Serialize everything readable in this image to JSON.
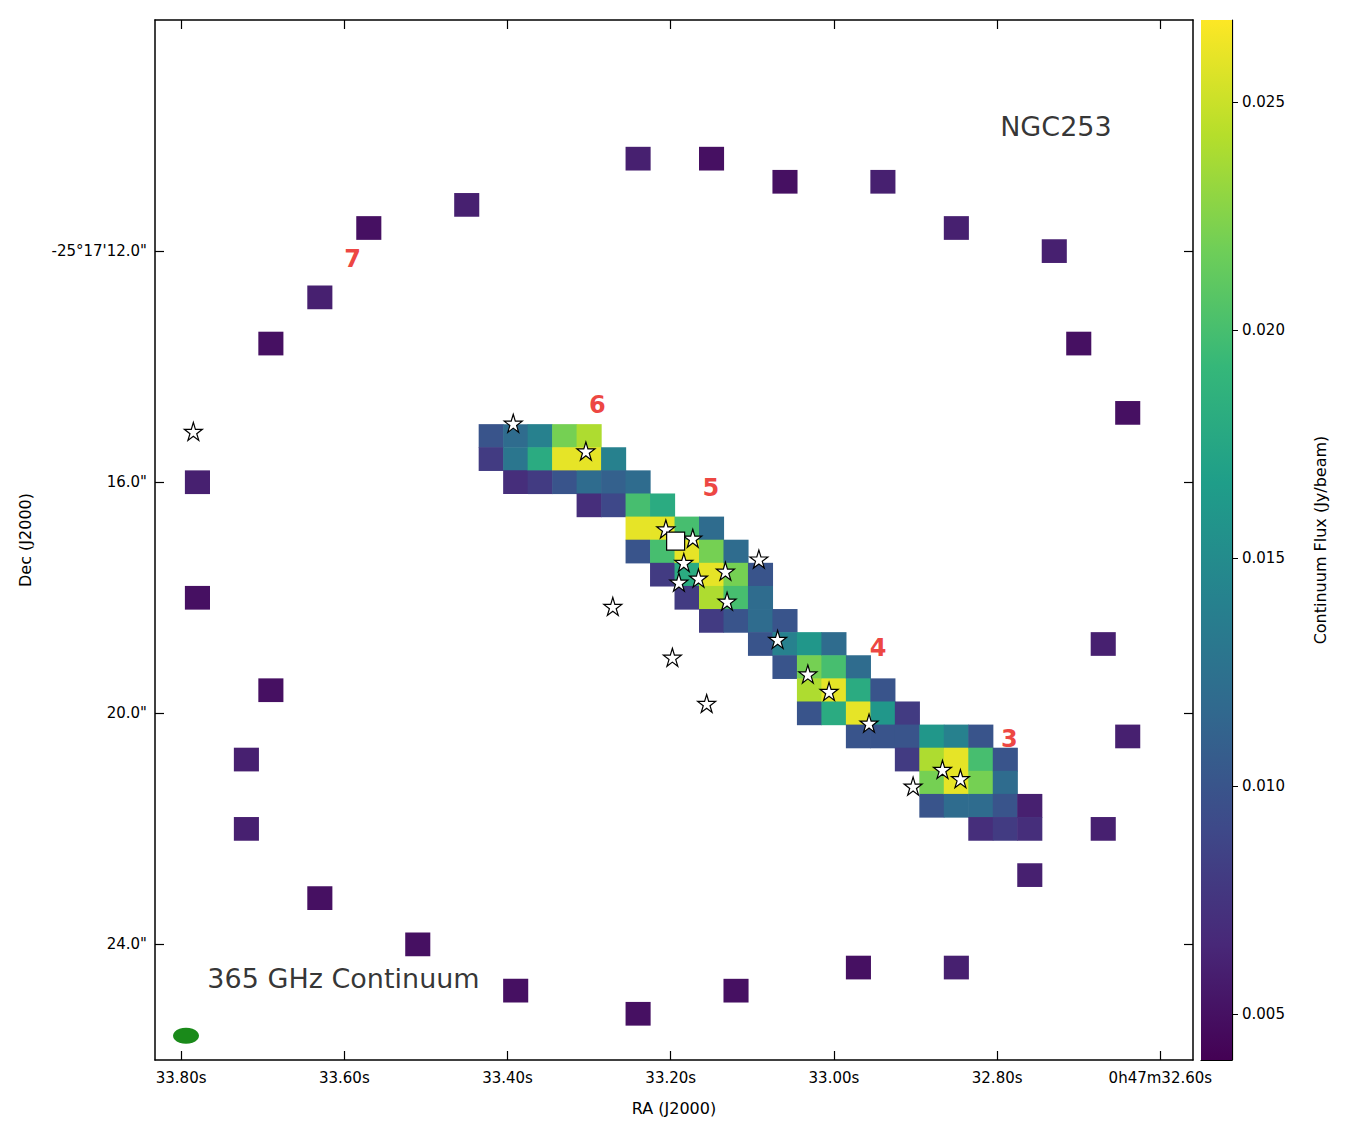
{
  "chart_data": {
    "type": "heatmap",
    "xlabel": "RA (J2000)",
    "ylabel": "Dec (J2000)",
    "xlim": [
      33.832,
      32.56
    ],
    "xticks": [
      {
        "value": 33.8,
        "label": "33.80s"
      },
      {
        "value": 33.6,
        "label": "33.60s"
      },
      {
        "value": 33.4,
        "label": "33.40s"
      },
      {
        "value": 33.2,
        "label": "33.20s"
      },
      {
        "value": 33.0,
        "label": "33.00s"
      },
      {
        "value": 32.8,
        "label": "32.80s"
      },
      {
        "value": 32.6,
        "label": "0h47m32.60s"
      }
    ],
    "ylim": [
      26,
      8
    ],
    "yticks": [
      {
        "value": 12,
        "label": "-25°17'12.0\""
      },
      {
        "value": 16,
        "label": "16.0\""
      },
      {
        "value": 20,
        "label": "20.0\""
      },
      {
        "value": 24,
        "label": "24.0\""
      }
    ],
    "grid": false,
    "heatmap": {
      "ra_step": 0.03,
      "dec_step": 0.4,
      "cells": [
        [
          33.42,
          15.2,
          0.01
        ],
        [
          33.42,
          15.6,
          0.008
        ],
        [
          33.39,
          15.2,
          0.012
        ],
        [
          33.39,
          15.6,
          0.013
        ],
        [
          33.39,
          16.0,
          0.007
        ],
        [
          33.36,
          15.2,
          0.014
        ],
        [
          33.36,
          15.6,
          0.018
        ],
        [
          33.36,
          16.0,
          0.008
        ],
        [
          33.33,
          15.2,
          0.022
        ],
        [
          33.33,
          15.6,
          0.026
        ],
        [
          33.33,
          16.0,
          0.01
        ],
        [
          33.3,
          15.2,
          0.024
        ],
        [
          33.3,
          15.6,
          0.026
        ],
        [
          33.3,
          16.0,
          0.012
        ],
        [
          33.3,
          16.4,
          0.007
        ],
        [
          33.27,
          15.6,
          0.014
        ],
        [
          33.27,
          16.0,
          0.011
        ],
        [
          33.27,
          16.4,
          0.009
        ],
        [
          33.24,
          16.0,
          0.012
        ],
        [
          33.24,
          16.4,
          0.02
        ],
        [
          33.24,
          16.8,
          0.026
        ],
        [
          33.24,
          17.2,
          0.01
        ],
        [
          33.21,
          16.4,
          0.018
        ],
        [
          33.21,
          16.8,
          0.026
        ],
        [
          33.21,
          17.2,
          0.02
        ],
        [
          33.21,
          17.6,
          0.008
        ],
        [
          33.18,
          16.8,
          0.02
        ],
        [
          33.18,
          17.2,
          0.026
        ],
        [
          33.18,
          17.6,
          0.018
        ],
        [
          33.18,
          18.0,
          0.008
        ],
        [
          33.15,
          16.8,
          0.012
        ],
        [
          33.15,
          17.2,
          0.022
        ],
        [
          33.15,
          17.6,
          0.026
        ],
        [
          33.15,
          18.0,
          0.024
        ],
        [
          33.15,
          18.4,
          0.008
        ],
        [
          33.12,
          17.2,
          0.012
        ],
        [
          33.12,
          17.6,
          0.022
        ],
        [
          33.12,
          18.0,
          0.02
        ],
        [
          33.12,
          18.4,
          0.01
        ],
        [
          33.09,
          17.6,
          0.01
        ],
        [
          33.09,
          18.0,
          0.012
        ],
        [
          33.09,
          18.4,
          0.012
        ],
        [
          33.09,
          18.8,
          0.01
        ],
        [
          33.06,
          18.4,
          0.01
        ],
        [
          33.06,
          18.8,
          0.014
        ],
        [
          33.06,
          19.2,
          0.01
        ],
        [
          33.03,
          18.8,
          0.016
        ],
        [
          33.03,
          19.2,
          0.022
        ],
        [
          33.03,
          19.6,
          0.024
        ],
        [
          33.03,
          20.0,
          0.01
        ],
        [
          33.0,
          18.8,
          0.012
        ],
        [
          33.0,
          19.2,
          0.02
        ],
        [
          33.0,
          19.6,
          0.026
        ],
        [
          33.0,
          20.0,
          0.018
        ],
        [
          32.97,
          19.2,
          0.012
        ],
        [
          32.97,
          19.6,
          0.018
        ],
        [
          32.97,
          20.0,
          0.026
        ],
        [
          32.97,
          20.4,
          0.01
        ],
        [
          32.94,
          19.6,
          0.01
        ],
        [
          32.94,
          20.0,
          0.016
        ],
        [
          32.94,
          20.4,
          0.01
        ],
        [
          32.91,
          20.0,
          0.008
        ],
        [
          32.91,
          20.4,
          0.01
        ],
        [
          32.91,
          20.8,
          0.008
        ],
        [
          32.88,
          20.4,
          0.016
        ],
        [
          32.88,
          20.8,
          0.024
        ],
        [
          32.88,
          21.2,
          0.022
        ],
        [
          32.88,
          21.6,
          0.01
        ],
        [
          32.85,
          20.4,
          0.014
        ],
        [
          32.85,
          20.8,
          0.026
        ],
        [
          32.85,
          21.2,
          0.026
        ],
        [
          32.85,
          21.6,
          0.012
        ],
        [
          32.82,
          20.4,
          0.01
        ],
        [
          32.82,
          20.8,
          0.02
        ],
        [
          32.82,
          21.2,
          0.022
        ],
        [
          32.82,
          21.6,
          0.012
        ],
        [
          32.82,
          22.0,
          0.007
        ],
        [
          32.79,
          20.8,
          0.01
        ],
        [
          32.79,
          21.2,
          0.012
        ],
        [
          32.79,
          21.6,
          0.01
        ],
        [
          32.79,
          22.0,
          0.008
        ],
        [
          32.76,
          21.6,
          0.006
        ],
        [
          32.76,
          22.0,
          0.007
        ],
        [
          33.78,
          16.0,
          0.006
        ],
        [
          33.69,
          13.6,
          0.005
        ],
        [
          33.63,
          12.8,
          0.006
        ],
        [
          33.45,
          11.2,
          0.006
        ],
        [
          33.24,
          10.4,
          0.006
        ],
        [
          33.15,
          10.4,
          0.005
        ],
        [
          33.06,
          10.8,
          0.005
        ],
        [
          32.94,
          10.8,
          0.006
        ],
        [
          32.85,
          11.6,
          0.006
        ],
        [
          32.73,
          12.0,
          0.006
        ],
        [
          32.7,
          13.6,
          0.005
        ],
        [
          32.64,
          14.8,
          0.005
        ],
        [
          32.67,
          18.8,
          0.006
        ],
        [
          32.64,
          20.4,
          0.006
        ],
        [
          32.67,
          22.0,
          0.006
        ],
        [
          32.76,
          22.8,
          0.006
        ],
        [
          32.85,
          24.4,
          0.006
        ],
        [
          32.97,
          24.4,
          0.005
        ],
        [
          33.12,
          24.8,
          0.005
        ],
        [
          33.24,
          25.2,
          0.005
        ],
        [
          33.39,
          24.8,
          0.005
        ],
        [
          33.51,
          24.0,
          0.005
        ],
        [
          33.63,
          23.2,
          0.005
        ],
        [
          33.72,
          22.0,
          0.006
        ],
        [
          33.72,
          20.8,
          0.006
        ],
        [
          33.69,
          19.6,
          0.005
        ],
        [
          33.78,
          18.0,
          0.005
        ],
        [
          33.57,
          11.6,
          0.005
        ]
      ]
    },
    "colorbar": {
      "label": "Continuum Flux (Jy/beam)",
      "range": [
        0.004,
        0.0268
      ],
      "ticks": [
        0.005,
        {
          "value": 0.01,
          "label": "0.010"
        },
        0.015,
        {
          "value": 0.02,
          "label": "0.020"
        },
        0.025
      ]
    },
    "markers": [
      {
        "marker": "star",
        "color": "white",
        "points": [
          [
            33.785,
            15.12
          ],
          [
            33.393,
            14.98
          ],
          [
            33.304,
            15.46
          ],
          [
            33.206,
            16.81
          ],
          [
            33.173,
            16.97
          ],
          [
            33.184,
            17.39
          ],
          [
            33.19,
            17.73
          ],
          [
            33.166,
            17.66
          ],
          [
            33.133,
            17.54
          ],
          [
            33.092,
            17.33
          ],
          [
            33.271,
            18.15
          ],
          [
            33.131,
            18.06
          ],
          [
            33.198,
            19.03
          ],
          [
            33.069,
            18.72
          ],
          [
            33.156,
            19.83
          ],
          [
            33.032,
            19.32
          ],
          [
            33.006,
            19.62
          ],
          [
            32.957,
            20.17
          ],
          [
            32.867,
            20.97
          ],
          [
            32.845,
            21.13
          ],
          [
            32.903,
            21.26
          ]
        ]
      },
      {
        "marker": "square",
        "color": "white",
        "points": [
          [
            33.194,
            17.02
          ]
        ]
      }
    ],
    "labels": [
      {
        "text": "7",
        "ra": 33.59,
        "dec": 12.14,
        "color": "red"
      },
      {
        "text": "6",
        "ra": 33.29,
        "dec": 14.67,
        "color": "red"
      },
      {
        "text": "5",
        "ra": 33.151,
        "dec": 16.1,
        "color": "red"
      },
      {
        "text": "4",
        "ra": 32.946,
        "dec": 18.87,
        "color": "red"
      },
      {
        "text": "3",
        "ra": 32.785,
        "dec": 20.45,
        "color": "red"
      }
    ],
    "annotations": [
      {
        "text": "NGC253",
        "ra": 32.728,
        "dec": 9.84
      },
      {
        "text": "365 GHz Continuum",
        "ra": 33.601,
        "dec": 24.59
      }
    ],
    "beam": {
      "ra": 33.794,
      "dec": 25.58,
      "color": "green"
    }
  }
}
